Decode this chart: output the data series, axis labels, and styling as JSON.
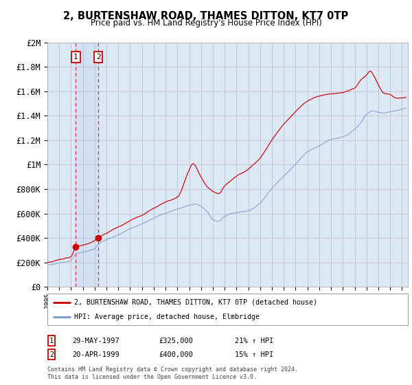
{
  "title": "2, BURTENSHAW ROAD, THAMES DITTON, KT7 0TP",
  "subtitle": "Price paid vs. HM Land Registry's House Price Index (HPI)",
  "ylim": [
    0,
    2000000
  ],
  "yticks": [
    0,
    200000,
    400000,
    600000,
    800000,
    1000000,
    1200000,
    1400000,
    1600000,
    1800000,
    2000000
  ],
  "ytick_labels": [
    "£0",
    "£200K",
    "£400K",
    "£600K",
    "£800K",
    "£1M",
    "£1.2M",
    "£1.4M",
    "£1.6M",
    "£1.8M",
    "£2M"
  ],
  "red_line_color": "#cc0000",
  "blue_line_color": "#7799cc",
  "background_color": "#ffffff",
  "plot_bg_color": "#dde8f5",
  "grid_color": "#bbbbcc",
  "legend_label_red": "2, BURTENSHAW ROAD, THAMES DITTON, KT7 0TP (detached house)",
  "legend_label_blue": "HPI: Average price, detached house, Elmbridge",
  "sale1_date": "29-MAY-1997",
  "sale1_price": "£325,000",
  "sale1_hpi": "21% ↑ HPI",
  "sale1_x": 1997.41,
  "sale1_y": 325000,
  "sale2_date": "20-APR-1999",
  "sale2_price": "£400,000",
  "sale2_hpi": "15% ↑ HPI",
  "sale2_x": 1999.3,
  "sale2_y": 400000,
  "footnote": "Contains HM Land Registry data © Crown copyright and database right 2024.\nThis data is licensed under the Open Government Licence v3.0.",
  "xmin": 1995.0,
  "xmax": 2025.5,
  "xtick_years": [
    1995,
    1996,
    1997,
    1998,
    1999,
    2000,
    2001,
    2002,
    2003,
    2004,
    2005,
    2006,
    2007,
    2008,
    2009,
    2010,
    2011,
    2012,
    2013,
    2014,
    2015,
    2016,
    2017,
    2018,
    2019,
    2020,
    2021,
    2022,
    2023,
    2024,
    2025
  ]
}
